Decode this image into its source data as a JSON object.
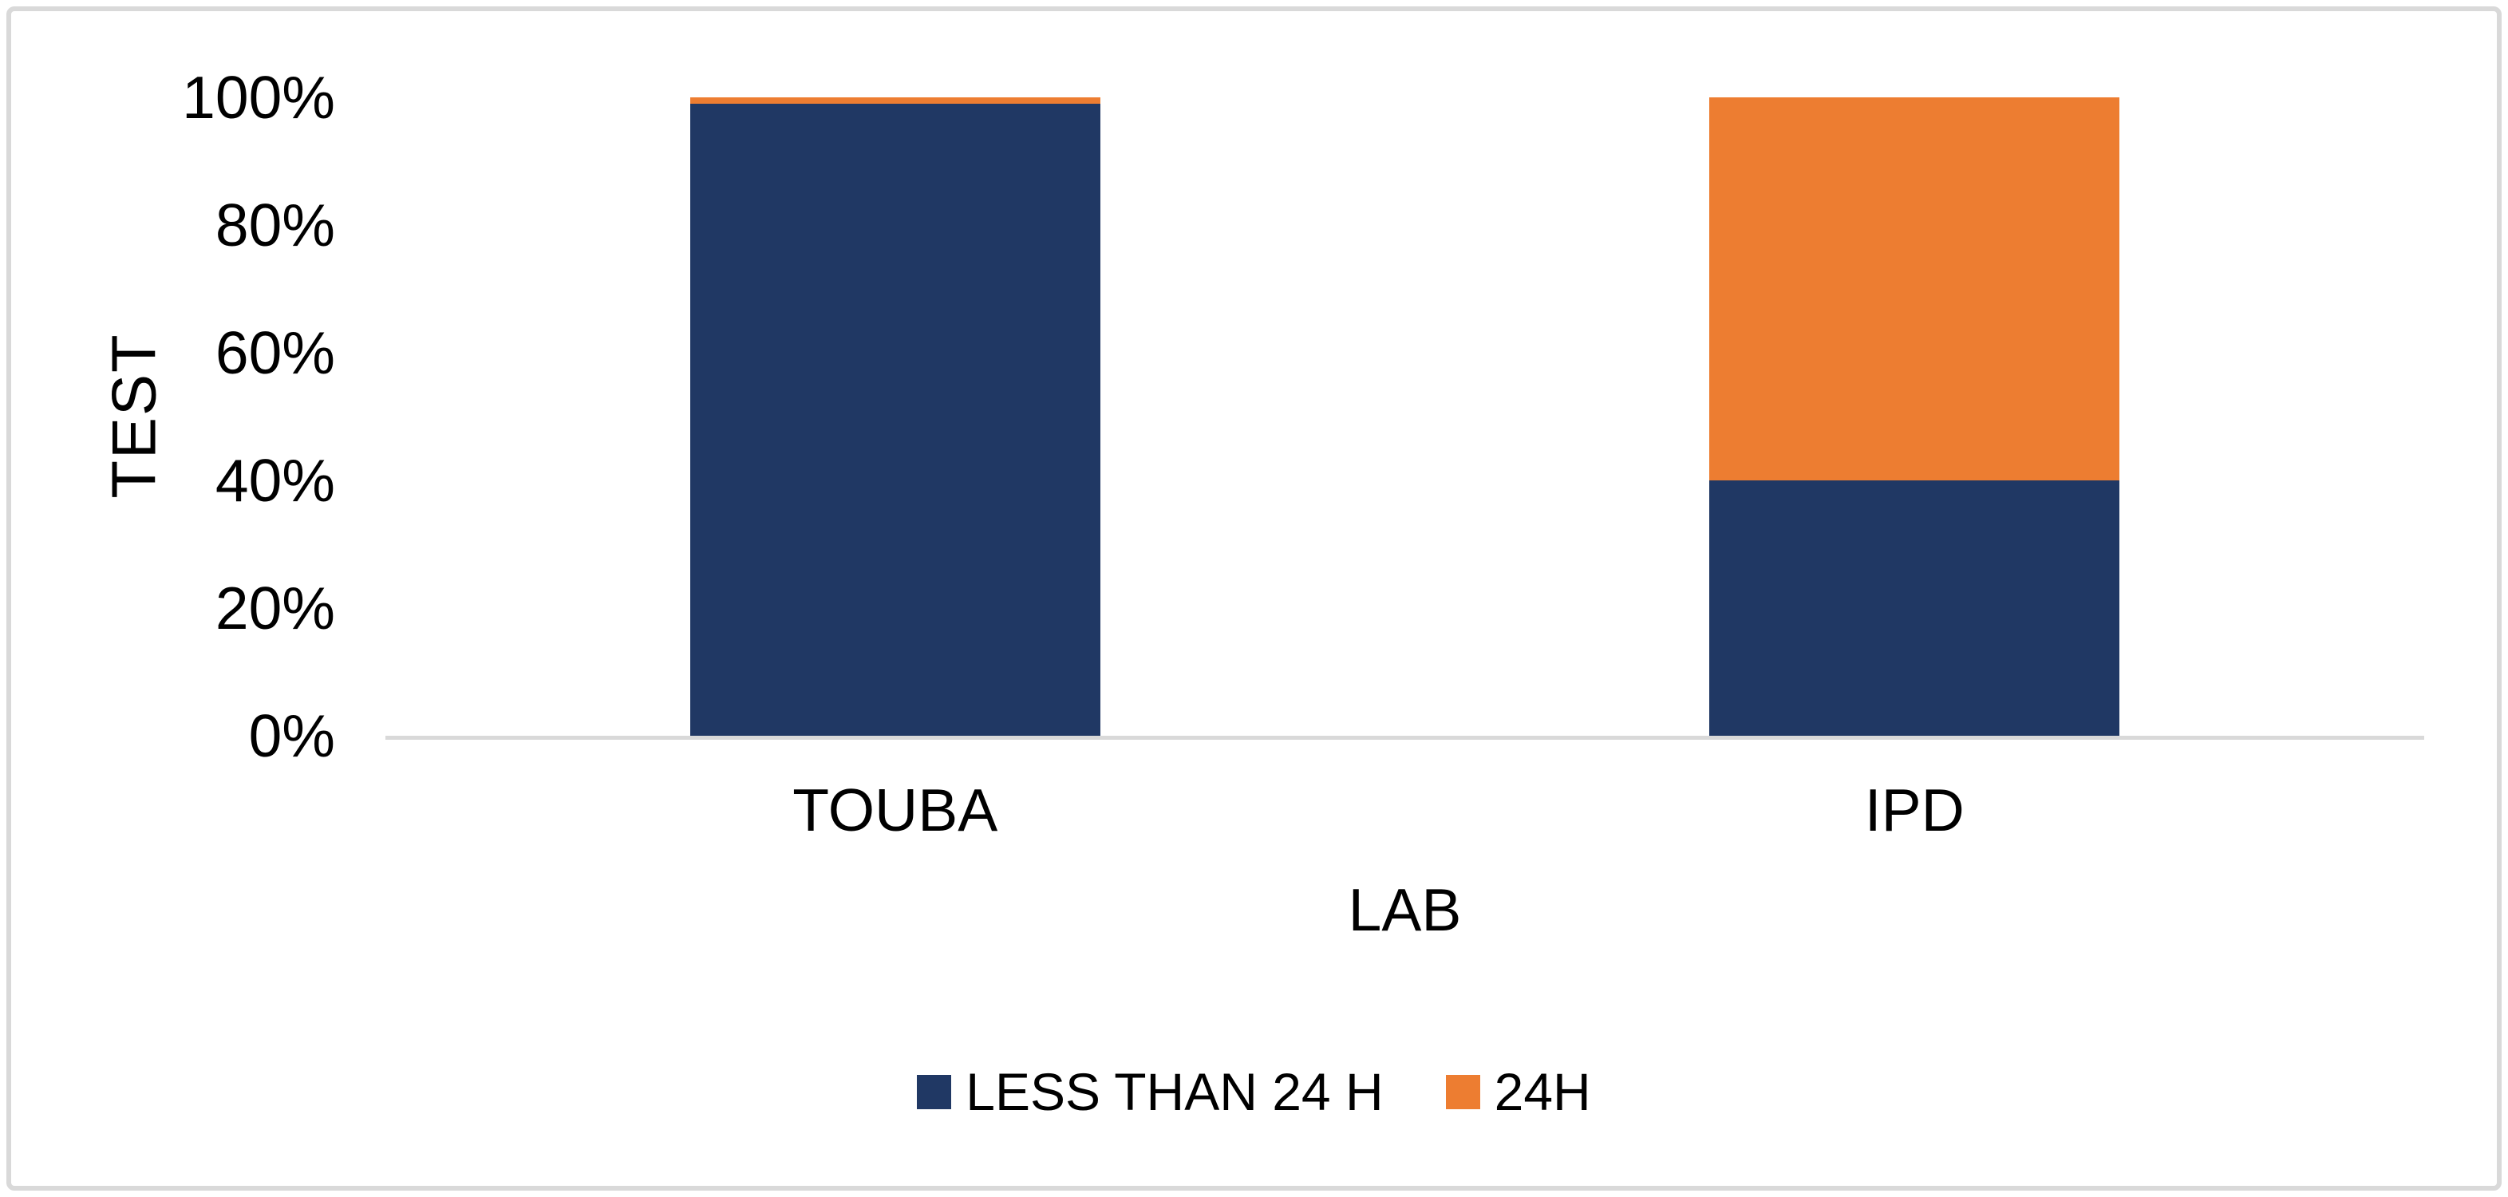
{
  "chart_data": {
    "type": "bar",
    "stacking": "percent",
    "title": "",
    "xlabel": "LAB",
    "ylabel": "TEST",
    "categories": [
      "TOUBA",
      "IPD"
    ],
    "series": [
      {
        "name": "LESS THAN 24 H",
        "color": "#203864",
        "values": [
          99,
          40
        ]
      },
      {
        "name": "24H",
        "color": "#ED7D31",
        "values": [
          1,
          60
        ]
      }
    ],
    "ylim": [
      0,
      100
    ],
    "yticks": [
      "0%",
      "20%",
      "40%",
      "60%",
      "80%",
      "100%"
    ],
    "grid": false,
    "legend_position": "bottom",
    "axis_line_color": "#D9D9D9",
    "frame_border_color": "#D9D9D9",
    "text_color": "#000000"
  }
}
